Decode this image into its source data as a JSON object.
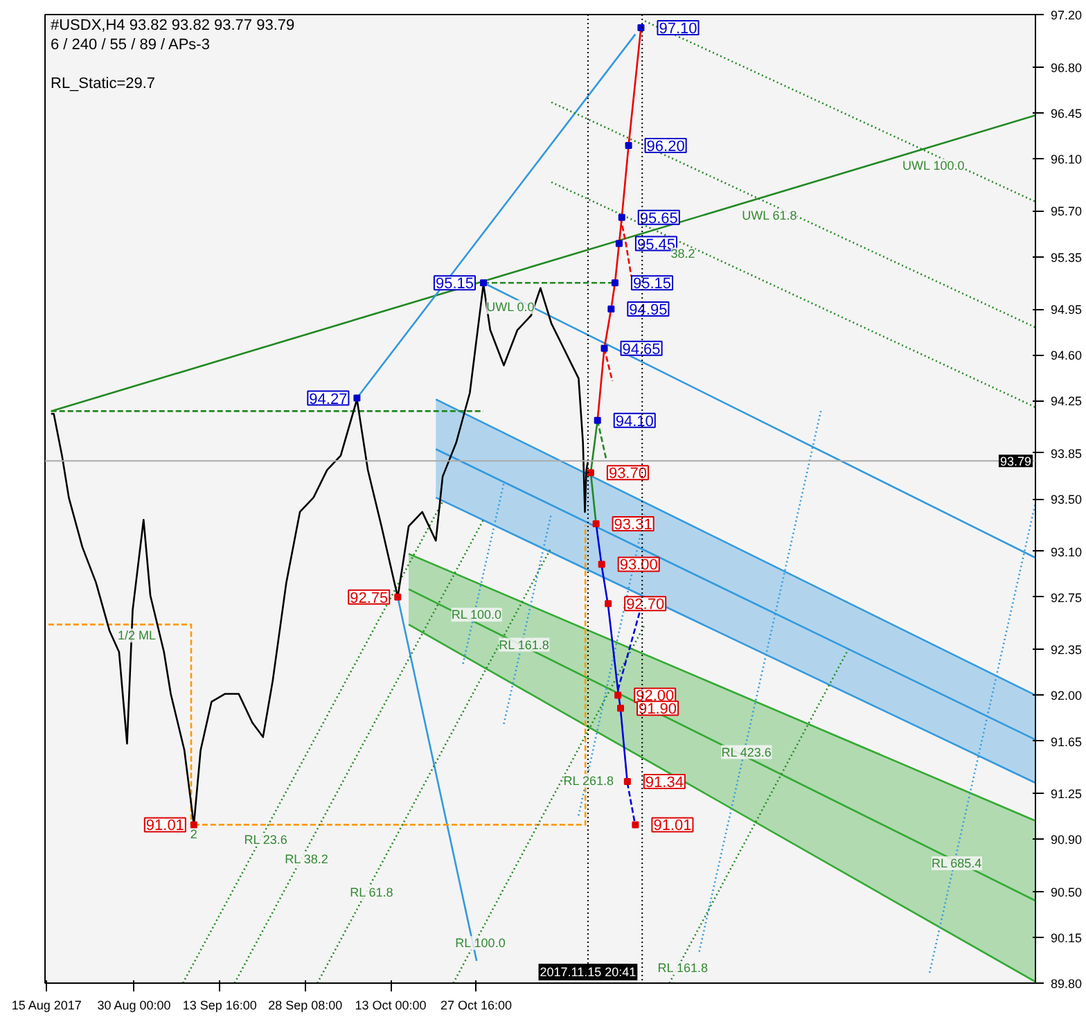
{
  "chart_data": {
    "type": "line",
    "title": "#USDX,H4  93.82 93.82 93.77 93.79",
    "subtitle": "6 / 240 / 55 / 89 / APs-3",
    "annotations": [
      "RL_Static=29.7",
      {
        "text": "UWL 100.0",
        "x": "2018-01-14T05:00",
        "y": 96.13
      },
      {
        "text": "UWL 61.8",
        "x": "2017-12-17T01:00",
        "y": 95.75
      },
      {
        "text": "38.2",
        "x": "2017-12-02T04:00",
        "y": 95.45
      },
      {
        "text": "UWL 0.0",
        "x": "2017-11-02T14:00",
        "y": 95.05
      },
      {
        "text": "1/2 ML",
        "x": "2017-08-30T10:00",
        "y": 92.54
      },
      {
        "text": "2",
        "x": "2017-09-09T05:00",
        "y": 91.01
      },
      {
        "text": "RL 23.6",
        "x": "2017-09-21T14:00",
        "y": 90.98
      },
      {
        "text": "RL 38.2",
        "x": "2017-09-28T14:00",
        "y": 90.83
      },
      {
        "text": "RL 61.8",
        "x": "2017-10-09T18:00",
        "y": 90.58
      },
      {
        "text": "RL 100.0",
        "x": "2017-10-28T10:00",
        "y": 90.19
      },
      {
        "text": "RL 100.0",
        "x": "2017-10-27T18:00",
        "y": 92.7
      },
      {
        "text": "RL 161.8",
        "x": "2017-11-04T22:00",
        "y": 92.47
      },
      {
        "text": "RL 261.8",
        "x": "2017-11-16T00:00",
        "y": 91.43
      },
      {
        "text": "RL 423.6",
        "x": "2017-12-13T02:00",
        "y": 91.65
      },
      {
        "text": "RL 685.4",
        "x": "2018-01-18T04:00",
        "y": 90.8
      },
      {
        "text": "RL 161.8",
        "x": "2017-12-02T04:00",
        "y": 90.0
      }
    ],
    "xlim": [
      "2017-08-14T16:00",
      "2018-01-31T16:00"
    ],
    "ylim": [
      89.8,
      97.2
    ],
    "xticks": [
      {
        "value": "2017-08-15",
        "label": "15 Aug 2017"
      },
      {
        "value": "2017-08-30T00:00",
        "label": "30 Aug 00:00"
      },
      {
        "value": "2017-09-13T16:00",
        "label": "13 Sep 16:00"
      },
      {
        "value": "2017-09-28T08:00",
        "label": "28 Sep 08:00"
      },
      {
        "value": "2017-10-13T00:00",
        "label": "13 Oct 00:00"
      },
      {
        "value": "2017-10-27T16:00",
        "label": "27 Oct 16:00"
      }
    ],
    "yticks": [
      {
        "value": 97.2,
        "label": "97.20"
      },
      {
        "value": 96.8,
        "label": "96.80"
      },
      {
        "value": 96.45,
        "label": "96.45"
      },
      {
        "value": 96.1,
        "label": "96.10"
      },
      {
        "value": 95.7,
        "label": "95.70"
      },
      {
        "value": 95.35,
        "label": "95.35"
      },
      {
        "value": 94.95,
        "label": "94.95"
      },
      {
        "value": 94.6,
        "label": "94.60"
      },
      {
        "value": 94.25,
        "label": "94.25"
      },
      {
        "value": 93.85,
        "label": "93.85"
      },
      {
        "value": 93.5,
        "label": "93.50"
      },
      {
        "value": 93.1,
        "label": "93.10"
      },
      {
        "value": 92.75,
        "label": "92.75"
      },
      {
        "value": 92.35,
        "label": "92.35"
      },
      {
        "value": 92.0,
        "label": "92.00"
      },
      {
        "value": 91.65,
        "label": "91.65"
      },
      {
        "value": 91.25,
        "label": "91.25"
      },
      {
        "value": 90.9,
        "label": "90.90"
      },
      {
        "value": 90.5,
        "label": "90.50"
      },
      {
        "value": 90.15,
        "label": "90.15"
      },
      {
        "value": 89.8,
        "label": "89.80"
      }
    ],
    "grid": false,
    "marker": "none",
    "line_style": "solid",
    "ref_lines": [
      {
        "axis": "x",
        "value": "2017-11-15T20:41",
        "label": "2017.11.15 20:41",
        "color": "#000000",
        "line_style": "dotted"
      },
      {
        "axis": "x",
        "value": "2017-11-25T04:00",
        "label": null,
        "color": "#000000",
        "line_style": "dotted"
      },
      {
        "axis": "y",
        "value": 93.79,
        "label": "93.79",
        "color": "#aaaaaa",
        "line_style": "solid"
      }
    ],
    "series": [
      {
        "color": "#3399dd",
        "x": [
          "2017-10-20T18:00",
          "2018-01-31T16:00"
        ],
        "values": [
          93.88,
          91.66
        ],
        "lower": [
          93.51,
          91.33
        ],
        "upper": [
          94.26,
          92.0
        ]
      },
      {
        "color": "#3399dd",
        "x": [
          "2017-10-20T18:00",
          "2018-01-31T16:00"
        ],
        "values": [
          93.51,
          91.33
        ]
      },
      {
        "color": "#3399dd",
        "x": [
          "2017-10-20T18:00",
          "2018-01-31T16:00"
        ],
        "values": [
          94.26,
          92.0
        ]
      },
      {
        "color": "#33aa33",
        "x": [
          "2017-10-16T02:00",
          "2018-01-31T16:00"
        ],
        "values": [
          92.81,
          90.43
        ],
        "lower": [
          92.54,
          89.81
        ],
        "upper": [
          93.08,
          91.04
        ]
      },
      {
        "color": "#33aa33",
        "x": [
          "2017-10-16T02:00",
          "2018-01-31T16:00"
        ],
        "values": [
          92.54,
          89.81
        ]
      },
      {
        "color": "#33aa33",
        "x": [
          "2017-10-16T02:00",
          "2018-01-31T16:00"
        ],
        "values": [
          93.08,
          91.04
        ]
      },
      {
        "color": "#228822",
        "x": [
          "2017-08-15T17:00",
          "2018-01-31T16:00"
        ],
        "values": [
          94.17,
          96.43
        ]
      },
      {
        "color": "#3399dd",
        "x": [
          "2017-10-07T05:00",
          "2017-11-24T00:00"
        ],
        "values": [
          94.27,
          97.05
        ]
      },
      {
        "color": "#3399dd",
        "x": [
          "2017-10-14T05:00",
          "2017-10-27T18:00"
        ],
        "values": [
          92.75,
          89.97
        ]
      },
      {
        "color": "#228822",
        "line_style": "dashed",
        "x": [
          "2017-08-15T17:00",
          "2017-10-28T22:00"
        ],
        "values": [
          94.17,
          94.17
        ]
      },
      {
        "color": "#228822",
        "line_style": "dashed",
        "x": [
          "2017-10-28T22:00",
          "2017-11-20T12:00"
        ],
        "values": [
          95.15,
          95.15
        ]
      },
      {
        "color": "#ff9900",
        "line_style": "dashed",
        "x": [
          "2017-09-09T05:00",
          "2017-11-15T10:00",
          "2017-11-15T10:00"
        ],
        "values": [
          91.01,
          91.01,
          93.3
        ]
      },
      {
        "color": "#ff9900",
        "line_style": "dashed",
        "x": [
          "2017-08-15T06:00",
          "2017-09-08T18:00",
          "2017-09-08T18:00"
        ],
        "values": [
          92.54,
          92.54,
          91.01
        ]
      },
      {
        "color": "#228822",
        "line_style": "dotted",
        "x": [
          "2017-11-25T15:00",
          "2018-01-31T16:00"
        ],
        "values": [
          97.15,
          95.77
        ]
      },
      {
        "color": "#228822",
        "line_style": "dotted",
        "x": [
          "2017-11-09T14:00",
          "2018-01-31T16:00"
        ],
        "values": [
          96.53,
          94.81
        ]
      },
      {
        "color": "#228822",
        "line_style": "dotted",
        "x": [
          "2017-11-09T14:00",
          "2018-01-31T16:00"
        ],
        "values": [
          95.92,
          94.2
        ]
      },
      {
        "color": "#3399dd",
        "x": [
          "2017-10-28T22:00",
          "2018-01-31T16:00"
        ],
        "values": [
          95.15,
          93.05
        ]
      },
      {
        "color": "#228822",
        "line_style": "dotted",
        "x": [
          "2017-09-07T08:00",
          "2017-10-21T22:00"
        ],
        "values": [
          89.8,
          93.48
        ]
      },
      {
        "color": "#228822",
        "line_style": "dotted",
        "x": [
          "2017-09-16T05:00",
          "2017-10-28T22:00"
        ],
        "values": [
          89.8,
          93.34
        ]
      },
      {
        "color": "#228822",
        "line_style": "dotted",
        "x": [
          "2017-09-30T10:00",
          "2017-11-09T14:00"
        ],
        "values": [
          89.8,
          93.13
        ]
      },
      {
        "color": "#228822",
        "line_style": "dotted",
        "x": [
          "2017-10-23T18:00",
          "2017-11-25T15:00"
        ],
        "values": [
          89.8,
          92.54
        ]
      },
      {
        "color": "#228822",
        "line_style": "dotted",
        "x": [
          "2017-11-29T20:00",
          "2017-12-30T13:00"
        ],
        "values": [
          89.8,
          92.35
        ]
      },
      {
        "color": "#3399dd",
        "line_style": "dotted",
        "x": [
          "2017-10-25T10:00",
          "2017-11-01T10:00"
        ],
        "values": [
          92.24,
          93.62
        ]
      },
      {
        "color": "#3399dd",
        "line_style": "dotted",
        "x": [
          "2017-11-01T10:00",
          "2017-11-09T14:00"
        ],
        "values": [
          91.78,
          93.39
        ]
      },
      {
        "color": "#3399dd",
        "line_style": "dotted",
        "x": [
          "2017-11-14T06:00",
          "2017-11-25T15:00"
        ],
        "values": [
          91.08,
          93.38
        ]
      },
      {
        "color": "#3399dd",
        "line_style": "dotted",
        "x": [
          "2017-12-04T23:00",
          "2017-12-25T21:00"
        ],
        "values": [
          90.04,
          94.18
        ]
      },
      {
        "color": "#3399dd",
        "line_style": "dotted",
        "x": [
          "2018-01-13T12:00",
          "2018-01-31T16:00"
        ],
        "values": [
          89.88,
          93.47
        ]
      },
      {
        "color": "#000000",
        "x": [
          "2017-08-15T17:00",
          "2017-08-16T04:00",
          "2017-08-17T14:00",
          "2017-08-18T18:00",
          "2017-08-21T02:00",
          "2017-08-23T10:00",
          "2017-08-25T18:00",
          "2017-08-27T09:00",
          "2017-08-28T18:00",
          "2017-08-29T17:00",
          "2017-08-31T14:00",
          "2017-09-01T18:00",
          "2017-09-04T02:00",
          "2017-09-05T06:00",
          "2017-09-07T14:00",
          "2017-09-09T05:00",
          "2017-09-10T09:00",
          "2017-09-12T06:00",
          "2017-09-14T14:00",
          "2017-09-16T22:00",
          "2017-09-19T06:00",
          "2017-09-21T02:00",
          "2017-09-22T18:00",
          "2017-09-25T02:00",
          "2017-09-27T10:00",
          "2017-09-29T18:00",
          "2017-10-02T02:00",
          "2017-10-04T10:00",
          "2017-10-07T05:00",
          "2017-10-09T02:00",
          "2017-10-11T10:00",
          "2017-10-14T05:00",
          "2017-10-16T02:00",
          "2017-10-18T10:00",
          "2017-10-20T18:00",
          "2017-10-21T22:00",
          "2017-10-24T06:00",
          "2017-10-26T14:00",
          "2017-10-28T22:00",
          "2017-10-30T02:00",
          "2017-11-01T10:00",
          "2017-11-03T18:00",
          "2017-11-06T02:00",
          "2017-11-07T17:00",
          "2017-11-09T14:00",
          "2017-11-11T22:00",
          "2017-11-14T06:00",
          "2017-11-15T00:00",
          "2017-11-15T08:00",
          "2017-11-15T14:00",
          "2017-11-15T20:00"
        ],
        "values": [
          94.15,
          94.15,
          93.83,
          93.51,
          93.13,
          92.86,
          92.49,
          92.33,
          91.63,
          92.65,
          93.34,
          92.76,
          92.33,
          92.01,
          91.58,
          91.01,
          91.58,
          91.95,
          92.01,
          92.01,
          91.79,
          91.68,
          92.11,
          92.86,
          93.4,
          93.51,
          93.72,
          93.83,
          94.26,
          93.72,
          93.29,
          92.75,
          93.29,
          93.4,
          93.18,
          93.67,
          93.93,
          94.31,
          95.14,
          94.79,
          94.52,
          94.79,
          94.9,
          95.11,
          94.84,
          94.63,
          94.42,
          93.93,
          93.4,
          93.72,
          93.78
        ]
      },
      {
        "color": "#228822",
        "x": [
          "2017-11-17T06:00",
          "2017-11-16T08:00",
          "2017-11-17T12:00"
        ],
        "values": [
          93.31,
          93.7,
          94.1
        ]
      },
      {
        "color": "#228822",
        "line_style": "dashed",
        "x": [
          "2017-11-17T12:00",
          "2017-11-19T00:00"
        ],
        "values": [
          94.1,
          93.8
        ]
      },
      {
        "color": "#ee0000",
        "x": [
          "2017-11-17T12:00",
          "2017-11-18T16:00",
          "2017-11-19T20:00",
          "2017-11-20T12:00",
          "2017-11-21T05:00",
          "2017-11-21T16:00",
          "2017-11-22T20:00",
          "2017-11-24T23:00"
        ],
        "values": [
          94.1,
          94.65,
          94.95,
          95.15,
          95.45,
          95.65,
          96.2,
          97.1
        ]
      },
      {
        "color": "#ee0000",
        "line_style": "dashed",
        "x": [
          "2017-11-18T16:00",
          "2017-11-20T01:00"
        ],
        "values": [
          94.65,
          94.4
        ]
      },
      {
        "color": "#ee0000",
        "line_style": "dashed",
        "x": [
          "2017-11-21T11:00",
          "2017-11-22T09:00",
          "2017-11-23T07:00"
        ],
        "values": [
          95.65,
          95.45,
          95.2
        ]
      },
      {
        "color": "#0000dd",
        "x": [
          "2017-11-17T06:00",
          "2017-11-18T05:00",
          "2017-11-19T08:00",
          "2017-11-21T00:00",
          "2017-11-21T11:00",
          "2017-11-22T15:00"
        ],
        "values": [
          93.31,
          92.99,
          92.68,
          92.04,
          91.89,
          91.33
        ]
      },
      {
        "color": "#0000dd",
        "line_style": "dashed",
        "x": [
          "2017-11-22T15:00",
          "2017-11-24T00:00"
        ],
        "values": [
          91.33,
          91.0
        ]
      },
      {
        "color": "#0000dd",
        "line_style": "dashed",
        "x": [
          "2017-11-21T00:00",
          "2017-11-24T17:00"
        ],
        "values": [
          92.04,
          92.63
        ]
      },
      {
        "type": "scatter",
        "marker": "square",
        "x": [
          "2017-10-28T22:00",
          "2017-10-07T05:00",
          "2017-10-14T05:00",
          "2017-09-09T05:00",
          "2017-11-24T23:00",
          "2017-11-22T20:00",
          "2017-11-21T16:00",
          "2017-11-21T05:00",
          "2017-11-20T12:00",
          "2017-11-19T20:00",
          "2017-11-18T16:00",
          "2017-11-17T12:00",
          "2017-11-16T08:00",
          "2017-11-17T06:00",
          "2017-11-18T05:00",
          "2017-11-19T08:00",
          "2017-11-21T00:00",
          "2017-11-21T11:00",
          "2017-11-22T15:00",
          "2017-11-24T00:00"
        ],
        "values": [
          95.15,
          94.27,
          92.75,
          91.01,
          97.1,
          96.2,
          95.65,
          95.45,
          95.15,
          94.95,
          94.65,
          94.1,
          93.7,
          93.31,
          93.0,
          92.7,
          92.0,
          91.9,
          91.34,
          91.01
        ],
        "colors": [
          "#0000cc",
          "#0000cc",
          "#dd0000",
          "#dd0000",
          "#0000cc",
          "#0000cc",
          "#0000cc",
          "#0000cc",
          "#0000cc",
          "#0000cc",
          "#0000cc",
          "#0000cc",
          "#dd0000",
          "#dd0000",
          "#dd0000",
          "#dd0000",
          "#dd0000",
          "#dd0000",
          "#dd0000",
          "#dd0000"
        ],
        "value_labels": [
          "95.15",
          "94.27",
          "92.75",
          "91.01",
          "97.10",
          "96.20",
          "95.65",
          "95.45",
          "95.15",
          "94.95",
          "94.65",
          "94.10",
          "93.70",
          "93.31",
          "93.00",
          "92.70",
          "92.00",
          "91.90",
          "91.34",
          "91.01"
        ]
      }
    ]
  }
}
